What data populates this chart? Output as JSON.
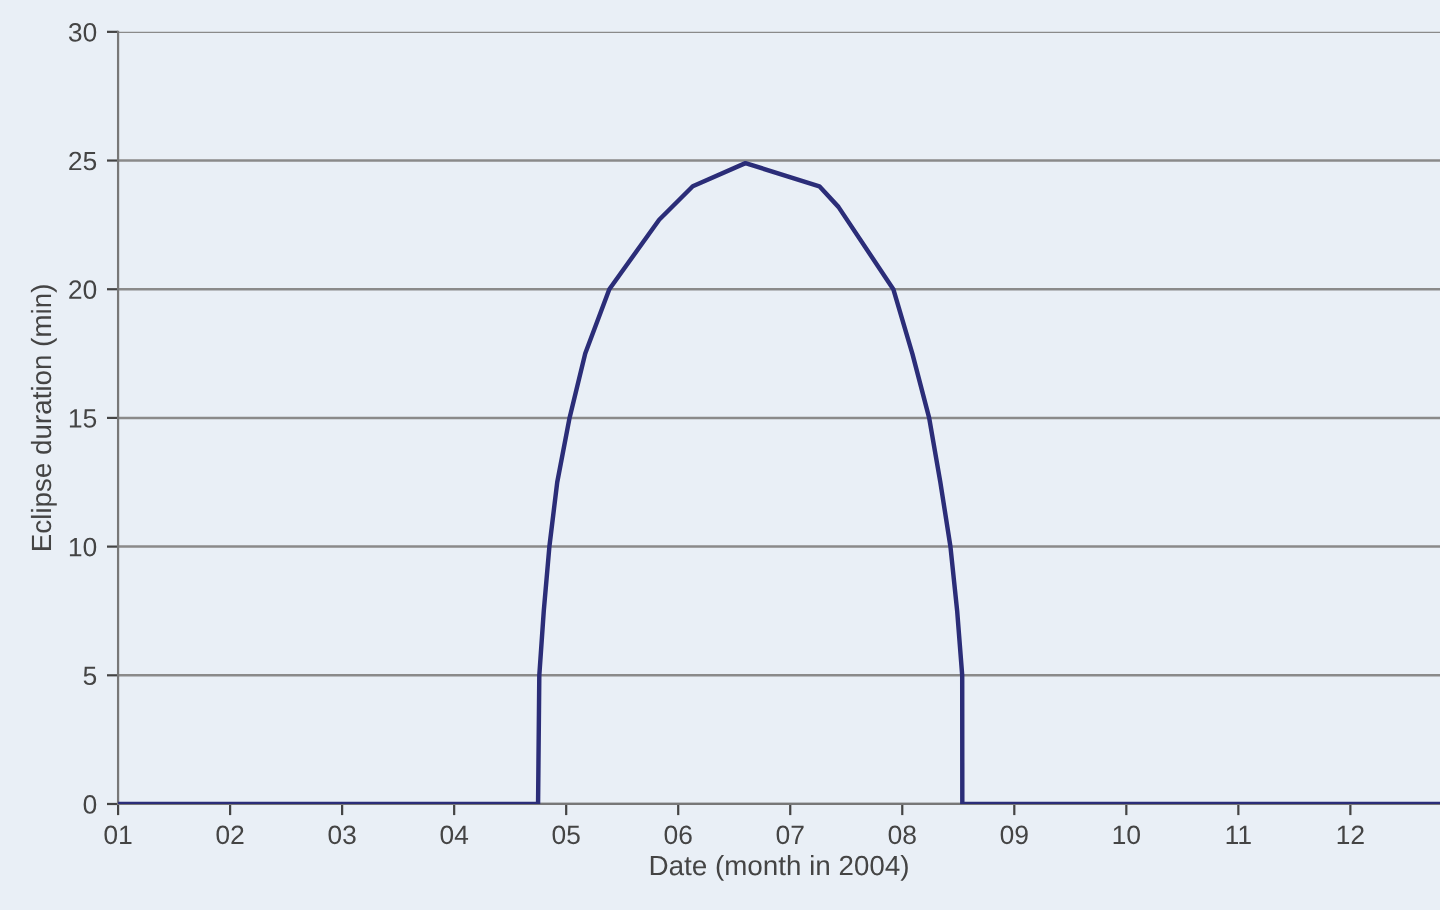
{
  "chart_data": {
    "type": "line",
    "xlabel": "Date (month in 2004)",
    "ylabel": "Eclipse duration (min)",
    "x": [
      1,
      4.749,
      4.76,
      4.8,
      4.85,
      4.92,
      5.03,
      5.17,
      5.385,
      5.83,
      6.13,
      6.6,
      7.26,
      7.43,
      7.92,
      8.09,
      8.24,
      8.34,
      8.43,
      8.49,
      8.535,
      8.536,
      12.8
    ],
    "series": [
      {
        "color": "#2b2d78",
        "values": [
          0,
          0,
          5,
          7.5,
          10,
          12.5,
          15,
          17.5,
          20,
          22.7,
          24,
          24.9,
          24,
          23.2,
          20,
          17.5,
          15,
          12.5,
          10,
          7.5,
          5,
          0,
          0
        ]
      }
    ],
    "xlim": [
      1,
      12.8
    ],
    "xticks": [
      {
        "value": 1,
        "label": "01"
      },
      {
        "value": 2,
        "label": "02"
      },
      {
        "value": 3,
        "label": "03"
      },
      {
        "value": 4,
        "label": "04"
      },
      {
        "value": 5,
        "label": "05"
      },
      {
        "value": 6,
        "label": "06"
      },
      {
        "value": 7,
        "label": "07"
      },
      {
        "value": 8,
        "label": "08"
      },
      {
        "value": 9,
        "label": "09"
      },
      {
        "value": 10,
        "label": "10"
      },
      {
        "value": 11,
        "label": "11"
      },
      {
        "value": 12,
        "label": "12"
      }
    ],
    "ylim": [
      0,
      30
    ],
    "yticks": [
      0,
      5,
      10,
      15,
      20,
      25,
      30
    ],
    "grid": "y",
    "legend": false,
    "marker": "none",
    "line_style": "solid"
  }
}
